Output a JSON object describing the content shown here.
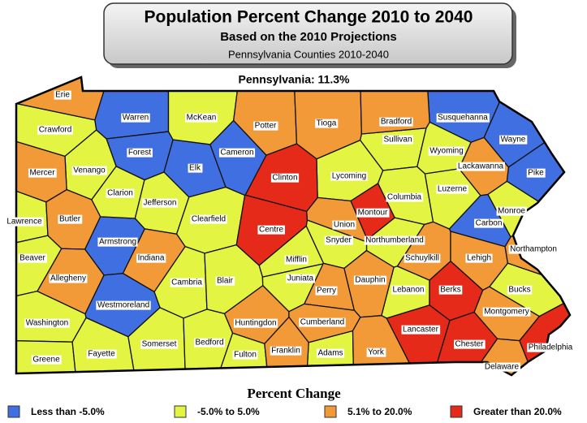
{
  "header": {
    "title": "Population Percent Change 2010 to 2040",
    "subtitle": "Based on the 2010 Projections",
    "source": "Pennsylvania Counties 2010-2040",
    "state_total": "Pennsylvania: 11.3%"
  },
  "legend": {
    "title": "Percent Change",
    "items": [
      {
        "label": "Less than -5.0%",
        "color": "#3f6fe0",
        "counties": [
          "Warren",
          "Forest",
          "Elk",
          "Cameron",
          "Susquehanna",
          "Wayne",
          "Pike",
          "Armstrong",
          "Westmoreland",
          "Carbon"
        ]
      },
      {
        "label": "-5.0% to 5.0%",
        "color": "#e3f542",
        "counties": [
          "Crawford",
          "Venango",
          "Clarion",
          "Jefferson",
          "Clearfield",
          "McKean",
          "Lawrence",
          "Beaver",
          "Washington",
          "Greene",
          "Fayette",
          "Somerset",
          "Bedford",
          "Fulton",
          "Cambria",
          "Blair",
          "Juniata",
          "Mifflin",
          "Sullivan",
          "Lycoming",
          "Columbia",
          "Luzerne",
          "Wyoming",
          "Monroe",
          "Bucks",
          "Northumberland",
          "Snyder",
          "Lebanon",
          "Adams"
        ]
      },
      {
        "label": "5.1% to 20.0%",
        "color": "#f39a38",
        "counties": [
          "Erie",
          "Mercer",
          "Butler",
          "Indiana",
          "Potter",
          "Tioga",
          "Bradford",
          "Lackawanna",
          "Union",
          "Schuylkill",
          "Lehigh",
          "Northampton",
          "Allegheny",
          "Huntingdon",
          "Perry",
          "Dauphin",
          "Cumberland",
          "Franklin",
          "York",
          "Montgomery",
          "Delaware"
        ]
      },
      {
        "label": "Greater than 20.0%",
        "color": "#e62a1a",
        "counties": [
          "Clinton",
          "Centre",
          "Montour",
          "Berks",
          "Lancaster",
          "Chester",
          "Philadelphia"
        ]
      }
    ]
  }
}
